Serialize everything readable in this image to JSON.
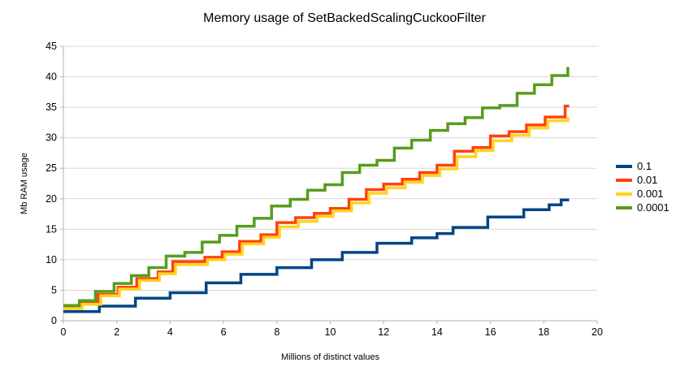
{
  "chart_data": {
    "type": "line",
    "title": "Memory usage of SetBackedScalingCuckooFilter",
    "xlabel": "Millions of distinct values",
    "ylabel": "Mb RAM usage",
    "xlim": [
      0,
      20
    ],
    "ylim": [
      0,
      45
    ],
    "x_ticks": [
      0,
      2,
      4,
      6,
      8,
      10,
      12,
      14,
      16,
      18,
      20
    ],
    "y_ticks": [
      0,
      5,
      10,
      15,
      20,
      25,
      30,
      35,
      40,
      45
    ],
    "grid": "horizontal",
    "legend_position": "right",
    "step_lines": true,
    "colors": {
      "gridline": "#d9d9d9",
      "axis": "#b3b3b3",
      "text": "#000000"
    },
    "series": [
      {
        "name": "0.1",
        "color": "#004586",
        "points": [
          [
            0,
            1.5
          ],
          [
            1.35,
            2.4
          ],
          [
            2.7,
            3.7
          ],
          [
            4.0,
            4.6
          ],
          [
            5.35,
            6.2
          ],
          [
            6.65,
            7.6
          ],
          [
            8.0,
            8.7
          ],
          [
            9.3,
            10.0
          ],
          [
            10.45,
            11.2
          ],
          [
            11.75,
            12.7
          ],
          [
            13.05,
            13.6
          ],
          [
            14.0,
            14.3
          ],
          [
            14.6,
            15.3
          ],
          [
            15.9,
            17.0
          ],
          [
            17.25,
            18.2
          ],
          [
            18.2,
            19.0
          ],
          [
            18.65,
            19.8
          ],
          [
            18.95,
            19.8
          ]
        ]
      },
      {
        "name": "0.01",
        "color": "#ff420e",
        "points": [
          [
            0,
            2.2
          ],
          [
            0.65,
            2.9
          ],
          [
            1.3,
            4.3
          ],
          [
            2.05,
            5.5
          ],
          [
            2.75,
            6.9
          ],
          [
            3.55,
            8.0
          ],
          [
            4.1,
            9.7
          ],
          [
            5.3,
            10.4
          ],
          [
            5.95,
            11.3
          ],
          [
            6.6,
            13.0
          ],
          [
            7.4,
            14.1
          ],
          [
            8.0,
            16.1
          ],
          [
            8.7,
            16.9
          ],
          [
            9.4,
            17.6
          ],
          [
            10.0,
            18.4
          ],
          [
            10.7,
            19.9
          ],
          [
            11.35,
            21.5
          ],
          [
            12.0,
            22.4
          ],
          [
            12.7,
            23.2
          ],
          [
            13.35,
            24.3
          ],
          [
            14.0,
            25.5
          ],
          [
            14.65,
            27.8
          ],
          [
            15.35,
            28.4
          ],
          [
            16.0,
            30.3
          ],
          [
            16.7,
            31.0
          ],
          [
            17.35,
            32.1
          ],
          [
            18.05,
            33.4
          ],
          [
            18.8,
            35.2
          ],
          [
            18.95,
            35.2
          ]
        ]
      },
      {
        "name": "0.001",
        "color": "#ffd320",
        "points": [
          [
            0,
            2.0
          ],
          [
            0.7,
            2.7
          ],
          [
            1.4,
            4.1
          ],
          [
            2.1,
            5.2
          ],
          [
            2.85,
            6.6
          ],
          [
            3.6,
            7.7
          ],
          [
            4.2,
            9.2
          ],
          [
            5.4,
            10.0
          ],
          [
            6.05,
            10.9
          ],
          [
            6.7,
            12.6
          ],
          [
            7.5,
            13.7
          ],
          [
            8.1,
            15.4
          ],
          [
            8.8,
            16.3
          ],
          [
            9.5,
            17.1
          ],
          [
            10.1,
            18.0
          ],
          [
            10.8,
            19.3
          ],
          [
            11.45,
            20.9
          ],
          [
            12.1,
            21.8
          ],
          [
            12.8,
            22.7
          ],
          [
            13.45,
            23.8
          ],
          [
            14.1,
            24.9
          ],
          [
            14.75,
            26.9
          ],
          [
            15.45,
            27.9
          ],
          [
            16.1,
            29.5
          ],
          [
            16.8,
            30.4
          ],
          [
            17.45,
            31.6
          ],
          [
            18.15,
            32.8
          ],
          [
            18.9,
            33.4
          ]
        ]
      },
      {
        "name": "0.0001",
        "color": "#579d1c",
        "points": [
          [
            0,
            2.5
          ],
          [
            0.6,
            3.3
          ],
          [
            1.2,
            4.8
          ],
          [
            1.9,
            6.1
          ],
          [
            2.55,
            7.4
          ],
          [
            3.2,
            8.7
          ],
          [
            3.85,
            10.6
          ],
          [
            4.55,
            11.2
          ],
          [
            5.2,
            12.9
          ],
          [
            5.85,
            14.0
          ],
          [
            6.5,
            15.5
          ],
          [
            7.15,
            16.8
          ],
          [
            7.8,
            18.8
          ],
          [
            8.5,
            19.9
          ],
          [
            9.15,
            21.4
          ],
          [
            9.8,
            22.3
          ],
          [
            10.45,
            24.3
          ],
          [
            11.1,
            25.5
          ],
          [
            11.75,
            26.3
          ],
          [
            12.4,
            28.3
          ],
          [
            13.05,
            29.6
          ],
          [
            13.75,
            31.2
          ],
          [
            14.4,
            32.3
          ],
          [
            15.05,
            33.3
          ],
          [
            15.7,
            34.9
          ],
          [
            16.35,
            35.3
          ],
          [
            17.0,
            37.3
          ],
          [
            17.65,
            38.7
          ],
          [
            18.3,
            40.2
          ],
          [
            18.9,
            41.6
          ]
        ]
      }
    ]
  }
}
